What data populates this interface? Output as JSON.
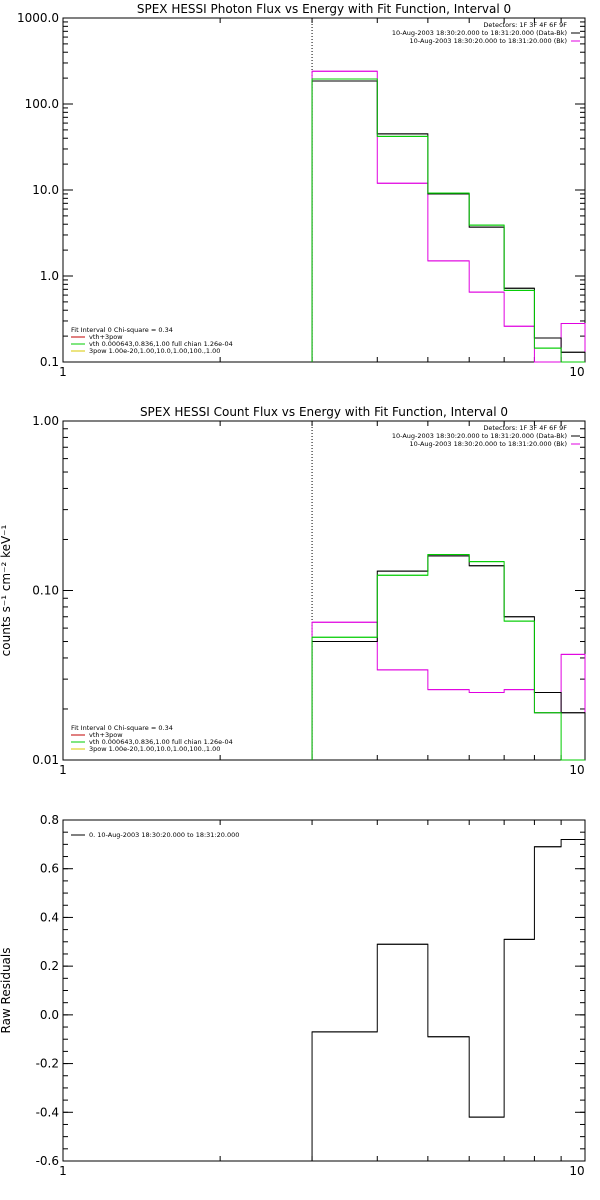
{
  "chart_data": [
    {
      "type": "line",
      "title": "SPEX HESSI Photon Flux vs Energy with Fit Function, Interval 0",
      "xlabel": "",
      "ylabel": "",
      "xscale": "log",
      "yscale": "log",
      "xlim": [
        1,
        10
      ],
      "ylim": [
        0.1,
        1000
      ],
      "x_ticks": [
        "1",
        "10"
      ],
      "y_ticks": [
        "1000.0",
        "100.0",
        "10.0",
        "1.0",
        "0.1"
      ],
      "vline_x": 3,
      "info_lines": [
        "Detectors: 1F 3F 4F 6F 9F",
        "10-Aug-2003 18:30:20.000 to 18:31:20.000 (Data-Bk)",
        "10-Aug-2003 18:30:20.000 to 18:31:20.000 (Bk)"
      ],
      "legend_header": "Fit Interval 0   Chi-square = 0.34",
      "legend_entries": [
        "vth+3pow",
        "vth 0.000643,0.836,1.00  full chian 1.26e-04",
        "3pow 1.00e-20,1.00,10.0,1.00,100.,1.00"
      ],
      "colors": {
        "data": "#000000",
        "bk": "#e000e0",
        "fit": "#00cc00",
        "fit_vth": "#c00000",
        "fit_pow": "#d8c800"
      },
      "edges": [
        3,
        4,
        5,
        6,
        7,
        8,
        9,
        10
      ],
      "series": [
        {
          "role": "data",
          "values": [
            185,
            45,
            9,
            3.7,
            0.72,
            0.19,
            0.13
          ]
        },
        {
          "role": "fit",
          "values": [
            195,
            42,
            9.2,
            3.9,
            0.68,
            0.145,
            0.095
          ]
        },
        {
          "role": "bk",
          "values": [
            240,
            12,
            1.5,
            0.65,
            0.26,
            0.075,
            0.28
          ]
        }
      ]
    },
    {
      "type": "line",
      "title": "SPEX HESSI Count Flux vs Energy with Fit Function, Interval 0",
      "xlabel": "",
      "ylabel": "counts s⁻¹ cm⁻² keV⁻¹",
      "xscale": "log",
      "yscale": "log",
      "xlim": [
        1,
        10
      ],
      "ylim": [
        0.01,
        1
      ],
      "x_ticks": [
        "1",
        "10"
      ],
      "y_ticks": [
        "1.00",
        "0.10",
        "0.01"
      ],
      "vline_x": 3,
      "info_lines": [
        "Detectors: 1F 3F 4F 6F 9F",
        "10-Aug-2003 18:30:20.000 to 18:31:20.000 (Data-Bk)",
        "10-Aug-2003 18:30:20.000 to 18:31:20.000 (Bk)"
      ],
      "legend_header": "Fit Interval 0   Chi-square = 0.34",
      "legend_entries": [
        "vth+3pow",
        "vth 0.000643,0.836,1.00  full chian 1.26e-04",
        "3pow 1.00e-20,1.00,10.0,1.00,100.,1.00"
      ],
      "colors": {
        "data": "#000000",
        "bk": "#e000e0",
        "fit": "#00cc00",
        "fit_vth": "#c00000",
        "fit_pow": "#d8c800"
      },
      "edges": [
        3,
        4,
        5,
        6,
        7,
        8,
        9,
        10
      ],
      "series": [
        {
          "role": "data",
          "values": [
            0.05,
            0.13,
            0.16,
            0.14,
            0.07,
            0.025,
            0.019
          ]
        },
        {
          "role": "fit",
          "values": [
            0.053,
            0.123,
            0.163,
            0.148,
            0.066,
            0.019,
            0.005
          ]
        },
        {
          "role": "bk",
          "values": [
            0.065,
            0.034,
            0.026,
            0.025,
            0.026,
            0.019,
            0.042
          ]
        }
      ]
    },
    {
      "type": "line",
      "title": "",
      "xlabel": "",
      "ylabel": "Raw Residuals",
      "xscale": "log",
      "yscale": "linear",
      "xlim": [
        1,
        10
      ],
      "ylim": [
        -0.6,
        0.8
      ],
      "x_ticks": [
        "1",
        "10"
      ],
      "y_ticks": [
        "0.8",
        "0.6",
        "0.4",
        "0.2",
        "0.0",
        "-0.2",
        "-0.4",
        "-0.6"
      ],
      "legend_entries": [
        "0. 10-Aug-2003 18:30:20.000 to 18:31:20.000"
      ],
      "colors": {
        "data": "#000000"
      },
      "edges": [
        3,
        4,
        5,
        6,
        7,
        8,
        9,
        10
      ],
      "series": [
        {
          "role": "data",
          "values": [
            -0.07,
            0.29,
            -0.09,
            -0.42,
            0.31,
            0.69,
            0.72
          ]
        }
      ]
    }
  ]
}
